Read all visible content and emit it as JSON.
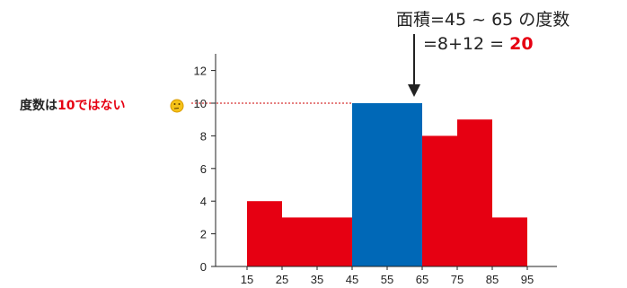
{
  "chart_data": {
    "type": "bar",
    "x_edges": [
      15,
      25,
      35,
      45,
      55,
      65,
      75,
      85,
      95
    ],
    "bins": [
      {
        "from": 15,
        "to": 25,
        "value": 4,
        "highlight": false
      },
      {
        "from": 25,
        "to": 35,
        "value": 3,
        "highlight": false
      },
      {
        "from": 35,
        "to": 45,
        "value": 3,
        "highlight": false
      },
      {
        "from": 45,
        "to": 65,
        "value": 10,
        "highlight": true
      },
      {
        "from": 65,
        "to": 75,
        "value": 8,
        "highlight": false
      },
      {
        "from": 75,
        "to": 85,
        "value": 9,
        "highlight": false
      },
      {
        "from": 85,
        "to": 95,
        "value": 3,
        "highlight": false
      }
    ],
    "ylim": [
      0,
      13
    ],
    "yticks": [
      0,
      2,
      4,
      6,
      8,
      10,
      12
    ],
    "xticks": [
      15,
      25,
      35,
      45,
      55,
      65,
      75,
      85,
      95
    ],
    "reference_line": {
      "value": 10
    },
    "colors": {
      "bar": "#e60012",
      "highlight": "#0068b7",
      "reference_line": "#cc0000",
      "accent_text": "#e60012",
      "axis": "#222222"
    }
  },
  "annotation": {
    "title": "面積=45 ~ 65 の度数",
    "formula": "=8+12 = ",
    "result": "20"
  },
  "side_note": {
    "text_before": "度数は",
    "number": "10",
    "text_after": "ではない",
    "emoji": "🤔"
  }
}
